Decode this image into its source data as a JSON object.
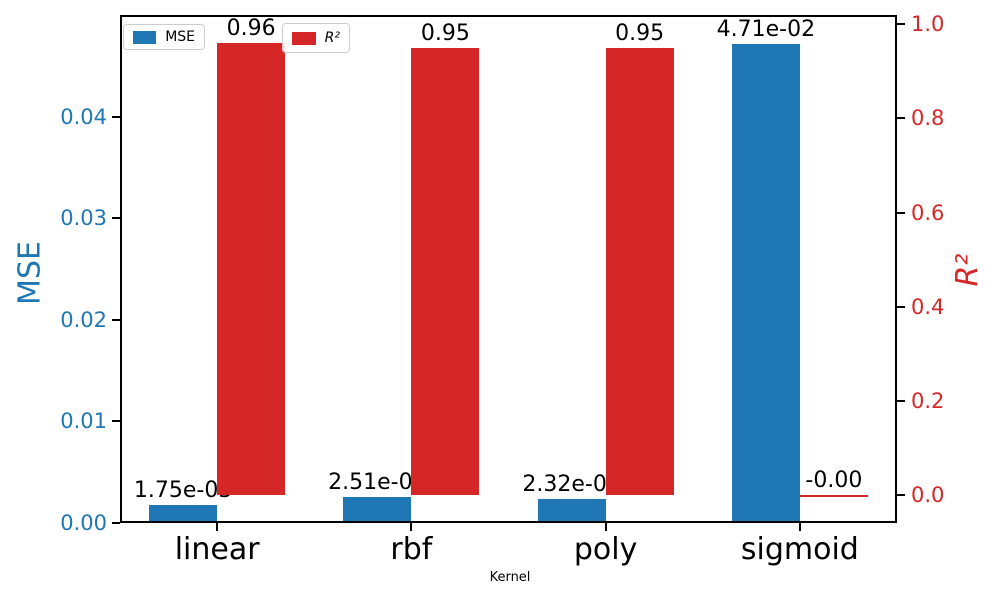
{
  "chart_data": {
    "type": "bar",
    "title": "",
    "xlabel": "Kernel",
    "categories": [
      "linear",
      "rbf",
      "poly",
      "sigmoid"
    ],
    "series": [
      {
        "name": "MSE",
        "axis": "left",
        "color": "#1f77b4",
        "values": [
          0.00175,
          0.00251,
          0.00232,
          0.0471
        ],
        "labels": [
          "1.75e-03",
          "2.51e-03",
          "2.32e-03",
          "4.71e-02"
        ]
      },
      {
        "name": "R²",
        "axis": "right",
        "color": "#d62728",
        "values": [
          0.96,
          0.95,
          0.95,
          -0.0047
        ],
        "labels": [
          "0.96",
          "0.95",
          "0.95",
          "-0.00"
        ]
      }
    ],
    "left_axis": {
      "label": "MSE",
      "color": "#1f77b4",
      "ticks": [
        "0.00",
        "0.01",
        "0.02",
        "0.03",
        "0.04"
      ],
      "tick_values": [
        0,
        0.01,
        0.02,
        0.03,
        0.04
      ],
      "ylim": [
        0,
        0.05
      ]
    },
    "right_axis": {
      "label": "R²",
      "color": "#d62728",
      "ticks": [
        "0.0",
        "0.2",
        "0.4",
        "0.6",
        "0.8",
        "1.0"
      ],
      "tick_values": [
        0,
        0.2,
        0.4,
        0.6,
        0.8,
        1.0
      ],
      "ylim": [
        -0.06,
        1.02
      ]
    },
    "legend": [
      {
        "label": "MSE",
        "color": "#1f77b4"
      },
      {
        "label": "R²",
        "color": "#d62728"
      }
    ],
    "bar_width_fraction": 0.35,
    "grid": false,
    "legend_position": "upper-left"
  }
}
